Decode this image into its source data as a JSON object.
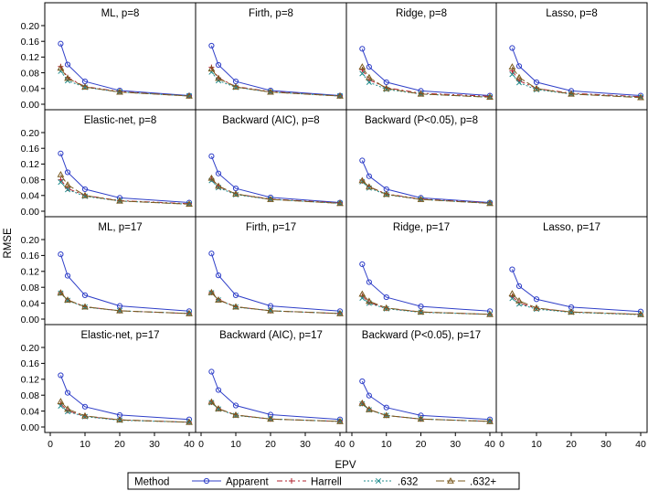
{
  "chart_data": {
    "type": "line",
    "layout": "panel-grid",
    "xlabel": "EPV",
    "ylabel": "RMSE",
    "xlim": [
      0,
      40
    ],
    "ylim": [
      0,
      0.2
    ],
    "xticks": [
      0,
      10,
      20,
      30,
      40
    ],
    "xtick_labels": [
      "0",
      "10",
      "20",
      "30",
      "40"
    ],
    "yticks": [
      0.0,
      0.04,
      0.08,
      0.12,
      0.16,
      0.2
    ],
    "ytick_labels": [
      "0.00",
      "0.04",
      "0.08",
      "0.12",
      "0.16",
      "0.20"
    ],
    "x": [
      3,
      5,
      10,
      20,
      40
    ],
    "legend": {
      "title": "Method",
      "placement": "bottom",
      "entries": [
        {
          "name": "Apparent",
          "color": "#2f3fc8",
          "marker": "circle"
        },
        {
          "name": "Harrell",
          "color": "#b0212e",
          "marker": "plus"
        },
        {
          "name": ".632",
          "color": "#1f8c8c",
          "marker": "x"
        },
        {
          "name": ".632+",
          "color": "#7a5a1e",
          "marker": "triangle"
        }
      ]
    },
    "panels": [
      {
        "title": "ML, p=8",
        "series": [
          {
            "name": "Apparent",
            "values": [
              0.154,
              0.101,
              0.058,
              0.035,
              0.022
            ]
          },
          {
            "name": "Harrell",
            "values": [
              0.096,
              0.068,
              0.045,
              0.032,
              0.021
            ]
          },
          {
            "name": ".632",
            "values": [
              0.084,
              0.06,
              0.043,
              0.031,
              0.021
            ]
          },
          {
            "name": ".632+",
            "values": [
              0.092,
              0.066,
              0.044,
              0.031,
              0.021
            ]
          }
        ]
      },
      {
        "title": "Firth, p=8",
        "series": [
          {
            "name": "Apparent",
            "values": [
              0.149,
              0.1,
              0.058,
              0.035,
              0.022
            ]
          },
          {
            "name": "Harrell",
            "values": [
              0.094,
              0.067,
              0.045,
              0.032,
              0.021
            ]
          },
          {
            "name": ".632",
            "values": [
              0.082,
              0.06,
              0.043,
              0.031,
              0.021
            ]
          },
          {
            "name": ".632+",
            "values": [
              0.09,
              0.066,
              0.044,
              0.031,
              0.021
            ]
          }
        ]
      },
      {
        "title": "Ridge, p=8",
        "series": [
          {
            "name": "Apparent",
            "values": [
              0.141,
              0.095,
              0.056,
              0.034,
              0.022
            ]
          },
          {
            "name": "Harrell",
            "values": [
              0.088,
              0.062,
              0.042,
              0.028,
              0.02
            ]
          },
          {
            "name": ".632",
            "values": [
              0.078,
              0.056,
              0.038,
              0.026,
              0.018
            ]
          },
          {
            "name": ".632+",
            "values": [
              0.095,
              0.068,
              0.04,
              0.026,
              0.018
            ]
          }
        ]
      },
      {
        "title": "Lasso, p=8",
        "series": [
          {
            "name": "Apparent",
            "values": [
              0.143,
              0.097,
              0.056,
              0.034,
              0.022
            ]
          },
          {
            "name": "Harrell",
            "values": [
              0.085,
              0.06,
              0.04,
              0.028,
              0.019
            ]
          },
          {
            "name": ".632",
            "values": [
              0.076,
              0.055,
              0.037,
              0.026,
              0.018
            ]
          },
          {
            "name": ".632+",
            "values": [
              0.095,
              0.068,
              0.04,
              0.026,
              0.017
            ]
          }
        ]
      },
      {
        "title": "Elastic-net, p=8",
        "series": [
          {
            "name": "Apparent",
            "values": [
              0.147,
              0.099,
              0.056,
              0.034,
              0.022
            ]
          },
          {
            "name": "Harrell",
            "values": [
              0.08,
              0.058,
              0.04,
              0.027,
              0.019
            ]
          },
          {
            "name": ".632",
            "values": [
              0.074,
              0.055,
              0.038,
              0.026,
              0.018
            ]
          },
          {
            "name": ".632+",
            "values": [
              0.093,
              0.067,
              0.04,
              0.026,
              0.018
            ]
          }
        ]
      },
      {
        "title": "Backward (AIC), p=8",
        "series": [
          {
            "name": "Apparent",
            "values": [
              0.14,
              0.096,
              0.058,
              0.035,
              0.022
            ]
          },
          {
            "name": "Harrell",
            "values": [
              0.082,
              0.063,
              0.044,
              0.031,
              0.021
            ]
          },
          {
            "name": ".632",
            "values": [
              0.078,
              0.06,
              0.042,
              0.03,
              0.02
            ]
          },
          {
            "name": ".632+",
            "values": [
              0.084,
              0.064,
              0.044,
              0.03,
              0.02
            ]
          }
        ]
      },
      {
        "title": "Backward (P<0.05), p=8",
        "series": [
          {
            "name": "Apparent",
            "values": [
              0.129,
              0.089,
              0.056,
              0.034,
              0.022
            ]
          },
          {
            "name": "Harrell",
            "values": [
              0.077,
              0.062,
              0.044,
              0.031,
              0.021
            ]
          },
          {
            "name": ".632",
            "values": [
              0.075,
              0.059,
              0.042,
              0.03,
              0.02
            ]
          },
          {
            "name": ".632+",
            "values": [
              0.078,
              0.062,
              0.043,
              0.03,
              0.02
            ]
          }
        ]
      },
      {
        "title": "",
        "series": []
      },
      {
        "title": "ML, p=17",
        "series": [
          {
            "name": "Apparent",
            "values": [
              0.163,
              0.109,
              0.06,
              0.033,
              0.02
            ]
          },
          {
            "name": "Harrell",
            "values": [
              0.066,
              0.048,
              0.031,
              0.021,
              0.014
            ]
          },
          {
            "name": ".632",
            "values": [
              0.065,
              0.047,
              0.03,
              0.021,
              0.014
            ]
          },
          {
            "name": ".632+",
            "values": [
              0.066,
              0.048,
              0.031,
              0.021,
              0.014
            ]
          }
        ]
      },
      {
        "title": "Firth, p=17",
        "series": [
          {
            "name": "Apparent",
            "values": [
              0.165,
              0.11,
              0.06,
              0.033,
              0.02
            ]
          },
          {
            "name": "Harrell",
            "values": [
              0.067,
              0.049,
              0.031,
              0.021,
              0.014
            ]
          },
          {
            "name": ".632",
            "values": [
              0.066,
              0.048,
              0.03,
              0.021,
              0.014
            ]
          },
          {
            "name": ".632+",
            "values": [
              0.067,
              0.048,
              0.031,
              0.021,
              0.014
            ]
          }
        ]
      },
      {
        "title": "Ridge, p=17",
        "series": [
          {
            "name": "Apparent",
            "values": [
              0.138,
              0.093,
              0.055,
              0.032,
              0.02
            ]
          },
          {
            "name": "Harrell",
            "values": [
              0.058,
              0.042,
              0.027,
              0.018,
              0.012
            ]
          },
          {
            "name": ".632",
            "values": [
              0.053,
              0.04,
              0.026,
              0.017,
              0.012
            ]
          },
          {
            "name": ".632+",
            "values": [
              0.063,
              0.045,
              0.028,
              0.018,
              0.012
            ]
          }
        ]
      },
      {
        "title": "Lasso, p=17",
        "series": [
          {
            "name": "Apparent",
            "values": [
              0.125,
              0.083,
              0.05,
              0.03,
              0.019
            ]
          },
          {
            "name": "Harrell",
            "values": [
              0.057,
              0.041,
              0.027,
              0.018,
              0.012
            ]
          },
          {
            "name": ".632",
            "values": [
              0.052,
              0.038,
              0.025,
              0.017,
              0.011
            ]
          },
          {
            "name": ".632+",
            "values": [
              0.064,
              0.046,
              0.028,
              0.018,
              0.012
            ]
          }
        ]
      },
      {
        "title": "Elastic-net, p=17",
        "series": [
          {
            "name": "Apparent",
            "values": [
              0.13,
              0.086,
              0.051,
              0.03,
              0.019
            ]
          },
          {
            "name": "Harrell",
            "values": [
              0.058,
              0.041,
              0.027,
              0.018,
              0.012
            ]
          },
          {
            "name": ".632",
            "values": [
              0.053,
              0.039,
              0.026,
              0.017,
              0.012
            ]
          },
          {
            "name": ".632+",
            "values": [
              0.064,
              0.045,
              0.028,
              0.018,
              0.012
            ]
          }
        ]
      },
      {
        "title": "Backward (AIC), p=17",
        "series": [
          {
            "name": "Apparent",
            "values": [
              0.139,
              0.093,
              0.054,
              0.031,
              0.019
            ]
          },
          {
            "name": "Harrell",
            "values": [
              0.062,
              0.046,
              0.03,
              0.02,
              0.014
            ]
          },
          {
            "name": ".632",
            "values": [
              0.061,
              0.045,
              0.029,
              0.02,
              0.014
            ]
          },
          {
            "name": ".632+",
            "values": [
              0.063,
              0.046,
              0.03,
              0.02,
              0.014
            ]
          }
        ]
      },
      {
        "title": "Backward (P<0.05), p=17",
        "series": [
          {
            "name": "Apparent",
            "values": [
              0.115,
              0.079,
              0.049,
              0.029,
              0.019
            ]
          },
          {
            "name": "Harrell",
            "values": [
              0.059,
              0.044,
              0.029,
              0.02,
              0.014
            ]
          },
          {
            "name": ".632",
            "values": [
              0.058,
              0.043,
              0.029,
              0.02,
              0.014
            ]
          },
          {
            "name": ".632+",
            "values": [
              0.06,
              0.044,
              0.029,
              0.02,
              0.014
            ]
          }
        ]
      },
      {
        "title": "",
        "series": []
      }
    ]
  }
}
